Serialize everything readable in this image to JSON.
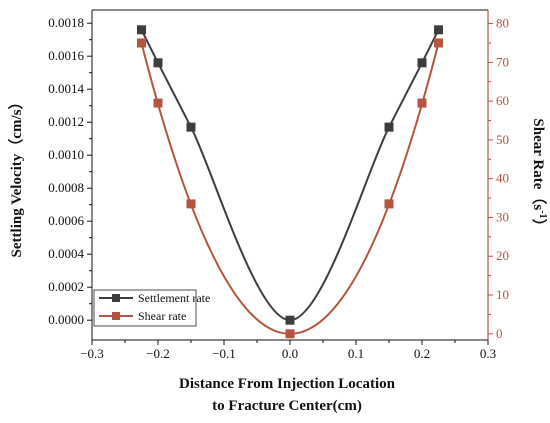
{
  "chart_data": {
    "type": "line",
    "xlabel_line1": "Distance From Injection Location",
    "xlabel_line2": "to Fracture Center(cm)",
    "ylabel_left": "Settling Velocity（cm/s）",
    "ylabel_right_main": "Shear Rate（s",
    "ylabel_right_sup": "-1",
    "ylabel_right_close": "）",
    "xlim": [
      -0.3,
      0.3
    ],
    "ylim_left": [
      -0.00012,
      0.00188
    ],
    "ylim_right": [
      -1.6,
      83.5
    ],
    "x_ticks": [
      "−0.3",
      "−0.2",
      "−0.1",
      "0.0",
      "0.1",
      "0.2",
      "0.3"
    ],
    "y_left_ticks": [
      "0.0000",
      "0.0002",
      "0.0004",
      "0.0006",
      "0.0008",
      "0.0010",
      "0.0012",
      "0.0014",
      "0.0016",
      "0.0018"
    ],
    "y_right_ticks": [
      "0",
      "10",
      "20",
      "30",
      "40",
      "50",
      "60",
      "70",
      "80"
    ],
    "grid": false,
    "legend_position": "bottom-left",
    "series": [
      {
        "name": "Settlement rate",
        "axis": "left",
        "color": "#3d3d3d",
        "marker": "square",
        "x": [
          -0.225,
          -0.2,
          -0.15,
          0.0,
          0.15,
          0.2,
          0.225
        ],
        "y": [
          0.00176,
          0.00156,
          0.00117,
          0.0,
          0.00117,
          0.00156,
          0.00176
        ]
      },
      {
        "name": "Shear rate",
        "axis": "right",
        "color": "#b5543f",
        "marker": "square",
        "x": [
          -0.225,
          -0.2,
          -0.15,
          0.0,
          0.15,
          0.2,
          0.225
        ],
        "y": [
          75,
          59.5,
          33.5,
          0,
          33.5,
          59.5,
          75
        ]
      }
    ]
  },
  "colors": {
    "left_axis": "#111111",
    "right_axis": "#b5543f"
  }
}
